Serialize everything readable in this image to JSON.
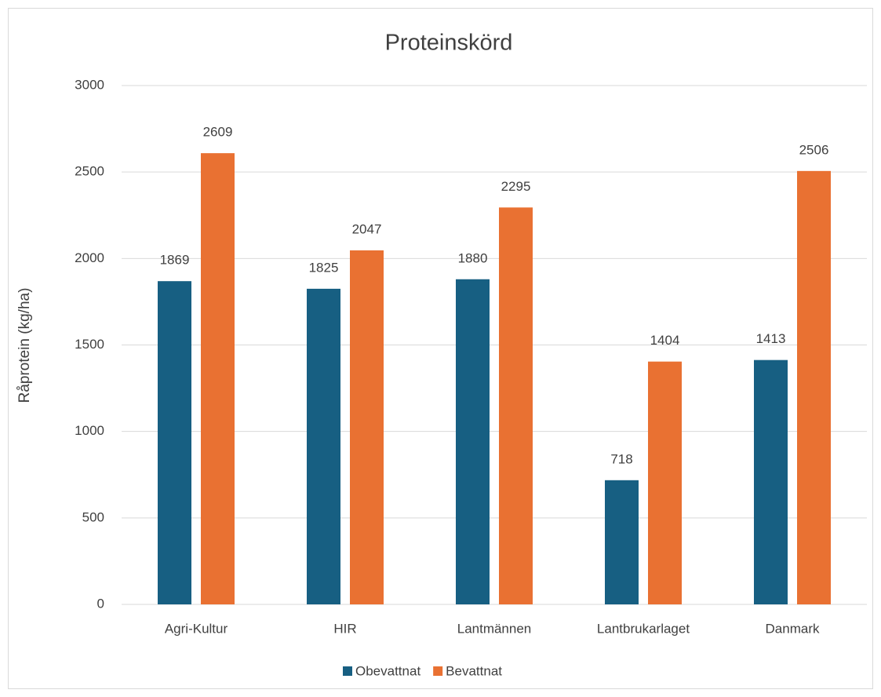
{
  "chart_data": {
    "type": "bar",
    "title": "Proteinskörd",
    "y_label": "Råprotein (kg/ha)",
    "categories": [
      "Agri-Kultur",
      "HIR",
      "Lantmännen",
      "Lantbrukarlaget",
      "Danmark"
    ],
    "series": [
      {
        "name": "Obevattnat",
        "color": "#175f82",
        "values": [
          1869,
          1825,
          1880,
          718,
          1413
        ]
      },
      {
        "name": "Bevattnat",
        "color": "#e97132",
        "values": [
          2609,
          2047,
          2295,
          1404,
          2506
        ]
      }
    ],
    "ylim": [
      0,
      3000
    ],
    "yticks": [
      0,
      500,
      1000,
      1500,
      2000,
      2500,
      3000
    ],
    "grid": true,
    "legend": "bottom"
  }
}
